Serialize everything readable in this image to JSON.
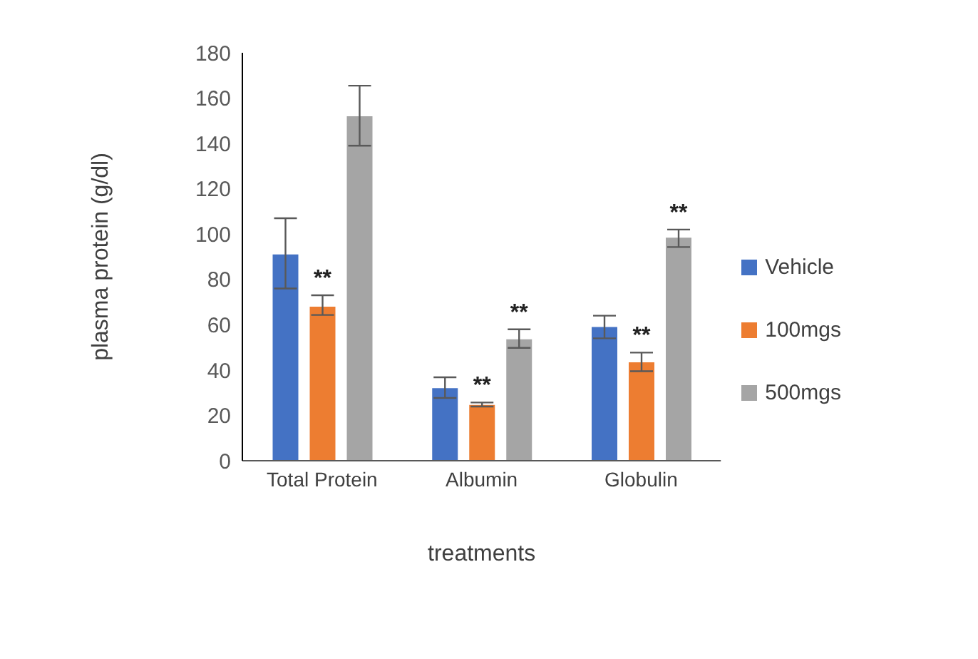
{
  "chart_data": {
    "type": "bar",
    "xlabel": "treatments",
    "ylabel": "plasma protein (g/dl)",
    "categories": [
      "Total Protein",
      "Albumin",
      "Globulin"
    ],
    "series": [
      {
        "name": "Vehicle",
        "color": "#4472c4",
        "values": [
          91,
          32,
          59
        ],
        "errors": [
          [
            76,
            107
          ],
          [
            27.7,
            36.8
          ],
          [
            54,
            64
          ]
        ]
      },
      {
        "name": "100mgs",
        "color": "#ed7d31",
        "values": [
          68,
          24.6,
          43.4
        ],
        "errors": [
          [
            64.3,
            73
          ],
          [
            23.9,
            25.7
          ],
          [
            39.5,
            47.7
          ]
        ],
        "value_labels": [
          "**",
          "**",
          "**"
        ]
      },
      {
        "name": "500mgs",
        "color": "#a5a5a5",
        "values": [
          152,
          53.6,
          98.4
        ],
        "errors": [
          [
            139,
            165.5
          ],
          [
            49.8,
            58
          ],
          [
            94.3,
            102
          ]
        ],
        "value_labels": [
          null,
          "**",
          "**"
        ]
      }
    ],
    "ylim": [
      0,
      180
    ],
    "yticks": [
      0,
      20,
      40,
      60,
      80,
      100,
      120,
      140,
      160,
      180
    ],
    "grid": false,
    "legend": "right"
  }
}
